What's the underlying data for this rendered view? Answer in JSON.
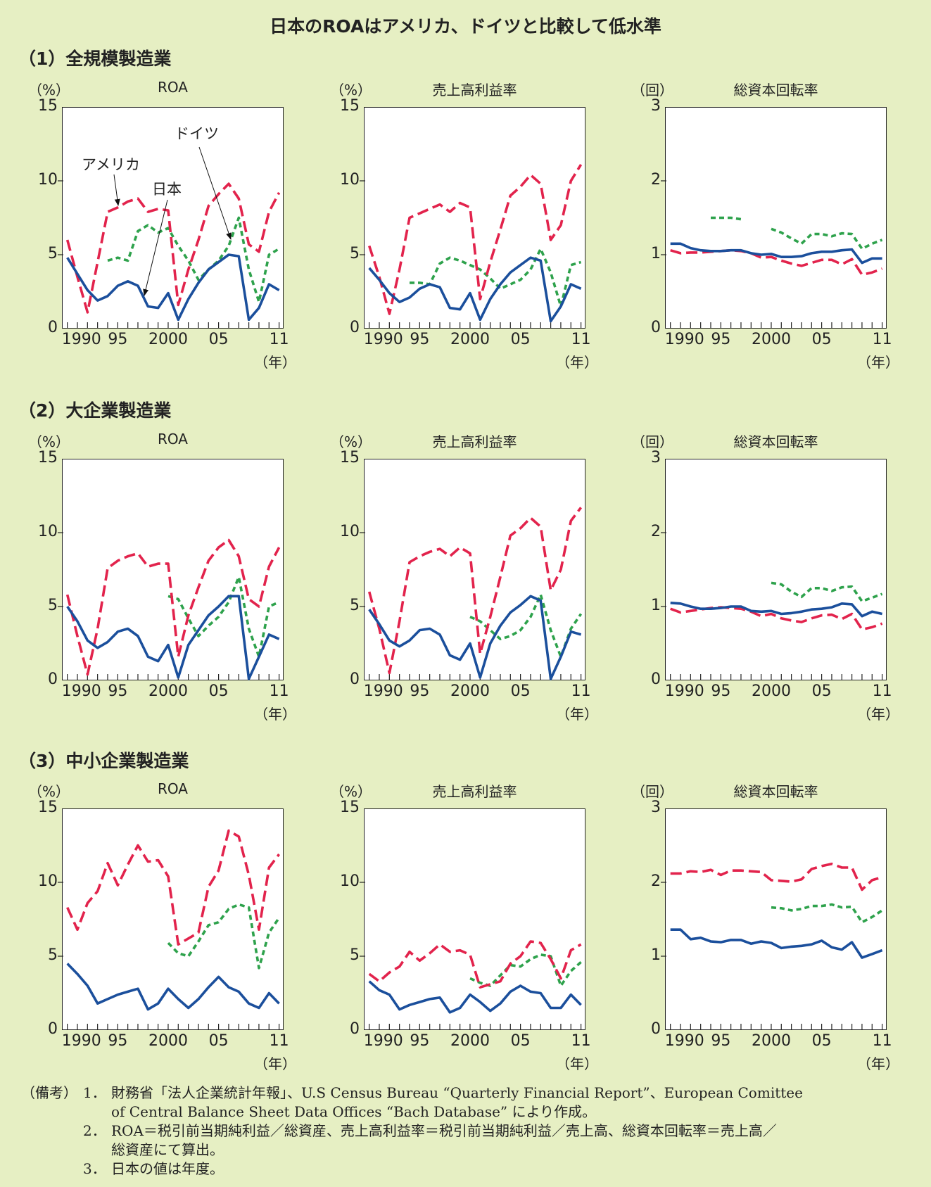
{
  "title": "日本のROAはアメリカ、ドイツと比較して低水準",
  "sections": [
    {
      "label": "（1）全規模製造業"
    },
    {
      "label": "（2）大企業製造業"
    },
    {
      "label": "（3）中小企業製造業"
    }
  ],
  "x_tick_labels": [
    "1990",
    "95",
    "2000",
    "05",
    "11"
  ],
  "x_unit": "（年）",
  "annotations": {
    "japan": "日本",
    "usa": "アメリカ",
    "germany": "ドイツ"
  },
  "colors": {
    "japan": "#1b4f9c",
    "usa": "#e2234c",
    "germany": "#2ea24c",
    "background": "#e6efc3"
  },
  "notes": {
    "label": "（備考）",
    "lines": [
      {
        "num": "1．",
        "text": "財務省「法人企業統計年報」、U.S Census Bureau “Quarterly Financial Report”、European Comittee"
      },
      {
        "num": "",
        "text": "of Central Balance Sheet Data Offices “Bach Database” により作成。"
      },
      {
        "num": "2．",
        "text": "ROA＝税引前当期純利益／総資産、売上高利益率＝税引前当期純利益／売上高、総資本回転率＝売上高／"
      },
      {
        "num": "",
        "text": "総資産にて算出。"
      },
      {
        "num": "3．",
        "text": "日本の値は年度。"
      }
    ]
  },
  "chart_data": [
    {
      "type": "line",
      "section": 0,
      "title": "ROA",
      "unit": "（%）",
      "ylim": [
        0,
        15
      ],
      "yticks": [
        0,
        5,
        10,
        15
      ],
      "x": [
        1990,
        1991,
        1992,
        1993,
        1994,
        1995,
        1996,
        1997,
        1998,
        1999,
        2000,
        2001,
        2002,
        2003,
        2004,
        2005,
        2006,
        2007,
        2008,
        2009,
        2010,
        2011
      ],
      "series": [
        {
          "name": "日本",
          "key": "japan",
          "values": [
            4.8,
            3.7,
            2.6,
            1.9,
            2.2,
            2.9,
            3.2,
            2.9,
            1.5,
            1.4,
            2.4,
            0.6,
            2.0,
            3.1,
            4.0,
            4.5,
            5.0,
            4.9,
            0.6,
            1.4,
            3.0,
            2.6
          ]
        },
        {
          "name": "アメリカ",
          "key": "usa",
          "values": [
            6.0,
            3.5,
            1.1,
            4.5,
            7.9,
            8.2,
            8.6,
            8.8,
            7.9,
            8.1,
            8.0,
            1.6,
            4.0,
            6.0,
            8.3,
            9.1,
            9.8,
            8.8,
            5.7,
            5.2,
            7.9,
            9.2
          ]
        },
        {
          "name": "ドイツ",
          "key": "germany",
          "values": [
            null,
            null,
            null,
            null,
            4.6,
            4.8,
            4.6,
            6.6,
            7.0,
            6.5,
            6.8,
            5.6,
            4.6,
            3.3,
            4.0,
            4.6,
            5.6,
            7.5,
            4.0,
            1.8,
            5.0,
            5.4
          ]
        }
      ]
    },
    {
      "type": "line",
      "section": 0,
      "title": "売上高利益率",
      "unit": "（%）",
      "ylim": [
        0,
        15
      ],
      "yticks": [
        0,
        5,
        10,
        15
      ],
      "x": [
        1990,
        1991,
        1992,
        1993,
        1994,
        1995,
        1996,
        1997,
        1998,
        1999,
        2000,
        2001,
        2002,
        2003,
        2004,
        2005,
        2006,
        2007,
        2008,
        2009,
        2010,
        2011
      ],
      "series": [
        {
          "name": "日本",
          "key": "japan",
          "values": [
            4.1,
            3.3,
            2.4,
            1.8,
            2.1,
            2.7,
            3.0,
            2.8,
            1.4,
            1.3,
            2.4,
            0.6,
            2.0,
            3.0,
            3.8,
            4.3,
            4.8,
            4.6,
            0.5,
            1.5,
            3.0,
            2.7
          ]
        },
        {
          "name": "アメリカ",
          "key": "usa",
          "values": [
            5.6,
            3.5,
            1.0,
            4.0,
            7.5,
            7.8,
            8.1,
            8.4,
            7.9,
            8.5,
            8.2,
            2.0,
            4.5,
            6.7,
            9.0,
            9.6,
            10.4,
            9.8,
            6.0,
            7.0,
            10.0,
            11.1
          ]
        },
        {
          "name": "ドイツ",
          "key": "germany",
          "values": [
            null,
            null,
            null,
            null,
            3.1,
            3.1,
            3.0,
            4.4,
            4.8,
            4.6,
            4.3,
            4.0,
            3.4,
            2.7,
            3.0,
            3.3,
            4.0,
            5.4,
            3.8,
            1.5,
            4.3,
            4.5
          ]
        }
      ]
    },
    {
      "type": "line",
      "section": 0,
      "title": "総資本回転率",
      "unit": "（回）",
      "ylim": [
        0,
        3
      ],
      "yticks": [
        0,
        1,
        2,
        3
      ],
      "x": [
        1990,
        1991,
        1992,
        1993,
        1994,
        1995,
        1996,
        1997,
        1998,
        1999,
        2000,
        2001,
        2002,
        2003,
        2004,
        2005,
        2006,
        2007,
        2008,
        2009,
        2010,
        2011
      ],
      "series": [
        {
          "name": "日本",
          "key": "japan",
          "values": [
            1.15,
            1.15,
            1.09,
            1.06,
            1.05,
            1.05,
            1.06,
            1.06,
            1.02,
            1.0,
            1.01,
            0.97,
            0.97,
            0.98,
            1.02,
            1.04,
            1.04,
            1.06,
            1.07,
            0.89,
            0.95,
            0.95
          ]
        },
        {
          "name": "アメリカ",
          "key": "usa",
          "values": [
            1.06,
            1.02,
            1.03,
            1.03,
            1.04,
            1.05,
            1.06,
            1.05,
            1.02,
            0.96,
            0.97,
            0.92,
            0.88,
            0.85,
            0.89,
            0.93,
            0.93,
            0.87,
            0.94,
            0.73,
            0.76,
            0.81
          ]
        },
        {
          "name": "ドイツ",
          "key": "germany",
          "values": [
            null,
            null,
            null,
            null,
            1.5,
            1.5,
            1.5,
            1.48,
            null,
            null,
            1.35,
            1.3,
            1.22,
            1.15,
            1.28,
            1.28,
            1.25,
            1.29,
            1.28,
            1.08,
            1.15,
            1.2
          ]
        }
      ]
    },
    {
      "type": "line",
      "section": 1,
      "title": "ROA",
      "unit": "（%）",
      "ylim": [
        0,
        15
      ],
      "yticks": [
        0,
        5,
        10,
        15
      ],
      "x": [
        1990,
        1991,
        1992,
        1993,
        1994,
        1995,
        1996,
        1997,
        1998,
        1999,
        2000,
        2001,
        2002,
        2003,
        2004,
        2005,
        2006,
        2007,
        2008,
        2009,
        2010,
        2011
      ],
      "series": [
        {
          "name": "日本",
          "key": "japan",
          "values": [
            5.0,
            4.0,
            2.7,
            2.2,
            2.6,
            3.3,
            3.5,
            3.0,
            1.6,
            1.3,
            2.4,
            0.2,
            2.4,
            3.4,
            4.4,
            5.0,
            5.7,
            5.7,
            0.1,
            1.6,
            3.1,
            2.8
          ]
        },
        {
          "name": "アメリカ",
          "key": "usa",
          "values": [
            5.8,
            3.0,
            0.4,
            3.5,
            7.6,
            8.1,
            8.4,
            8.6,
            7.7,
            7.9,
            7.9,
            1.6,
            4.4,
            6.3,
            8.1,
            9.0,
            9.5,
            8.4,
            5.5,
            5.0,
            7.7,
            9.0
          ]
        },
        {
          "name": "ドイツ",
          "key": "germany",
          "values": [
            null,
            null,
            null,
            null,
            null,
            null,
            null,
            null,
            null,
            null,
            5.7,
            5.5,
            4.2,
            3.0,
            3.7,
            4.3,
            5.3,
            7.0,
            3.5,
            1.6,
            5.0,
            5.3
          ]
        }
      ]
    },
    {
      "type": "line",
      "section": 1,
      "title": "売上高利益率",
      "unit": "（%）",
      "ylim": [
        0,
        15
      ],
      "yticks": [
        0,
        5,
        10,
        15
      ],
      "x": [
        1990,
        1991,
        1992,
        1993,
        1994,
        1995,
        1996,
        1997,
        1998,
        1999,
        2000,
        2001,
        2002,
        2003,
        2004,
        2005,
        2006,
        2007,
        2008,
        2009,
        2010,
        2011
      ],
      "series": [
        {
          "name": "日本",
          "key": "japan",
          "values": [
            4.8,
            3.8,
            2.7,
            2.3,
            2.7,
            3.4,
            3.5,
            3.1,
            1.7,
            1.4,
            2.5,
            0.2,
            2.5,
            3.7,
            4.6,
            5.1,
            5.7,
            5.4,
            0.1,
            1.6,
            3.3,
            3.1
          ]
        },
        {
          "name": "アメリカ",
          "key": "usa",
          "values": [
            6.0,
            3.5,
            0.5,
            4.0,
            8.0,
            8.4,
            8.7,
            8.9,
            8.4,
            9.0,
            8.6,
            1.8,
            4.3,
            7.0,
            9.8,
            10.3,
            11.0,
            10.4,
            6.1,
            7.5,
            10.8,
            11.7
          ]
        },
        {
          "name": "ドイツ",
          "key": "germany",
          "values": [
            null,
            null,
            null,
            null,
            null,
            null,
            null,
            null,
            null,
            null,
            4.3,
            4.0,
            3.4,
            2.8,
            3.0,
            3.4,
            4.3,
            5.8,
            3.4,
            1.6,
            3.5,
            4.5
          ]
        }
      ]
    },
    {
      "type": "line",
      "section": 1,
      "title": "総資本回転率",
      "unit": "（回）",
      "ylim": [
        0,
        3
      ],
      "yticks": [
        0,
        1,
        2,
        3
      ],
      "x": [
        1990,
        1991,
        1992,
        1993,
        1994,
        1995,
        1996,
        1997,
        1998,
        1999,
        2000,
        2001,
        2002,
        2003,
        2004,
        2005,
        2006,
        2007,
        2008,
        2009,
        2010,
        2011
      ],
      "series": [
        {
          "name": "日本",
          "key": "japan",
          "values": [
            1.05,
            1.04,
            1.0,
            0.97,
            0.97,
            0.98,
            1.0,
            1.0,
            0.94,
            0.93,
            0.94,
            0.9,
            0.91,
            0.93,
            0.96,
            0.97,
            0.99,
            1.04,
            1.03,
            0.87,
            0.93,
            0.9
          ]
        },
        {
          "name": "アメリカ",
          "key": "usa",
          "values": [
            0.97,
            0.92,
            0.94,
            0.96,
            0.98,
            0.99,
            0.98,
            0.97,
            0.93,
            0.87,
            0.9,
            0.84,
            0.81,
            0.79,
            0.84,
            0.88,
            0.89,
            0.83,
            0.9,
            0.69,
            0.72,
            0.77
          ]
        },
        {
          "name": "ドイツ",
          "key": "germany",
          "values": [
            null,
            null,
            null,
            null,
            null,
            null,
            null,
            null,
            null,
            null,
            1.32,
            1.3,
            1.2,
            1.13,
            1.25,
            1.25,
            1.21,
            1.26,
            1.27,
            1.07,
            1.12,
            1.17
          ]
        }
      ]
    },
    {
      "type": "line",
      "section": 2,
      "title": "ROA",
      "unit": "（%）",
      "ylim": [
        0,
        15
      ],
      "yticks": [
        0,
        5,
        10,
        15
      ],
      "x": [
        1990,
        1991,
        1992,
        1993,
        1994,
        1995,
        1996,
        1997,
        1998,
        1999,
        2000,
        2001,
        2002,
        2003,
        2004,
        2005,
        2006,
        2007,
        2008,
        2009,
        2010,
        2011
      ],
      "series": [
        {
          "name": "日本",
          "key": "japan",
          "values": [
            4.5,
            3.8,
            3.0,
            1.8,
            2.1,
            2.4,
            2.6,
            2.8,
            1.4,
            1.8,
            2.8,
            2.1,
            1.5,
            2.1,
            2.9,
            3.6,
            2.9,
            2.6,
            1.8,
            1.5,
            2.5,
            1.8
          ]
        },
        {
          "name": "アメリカ",
          "key": "usa",
          "values": [
            8.3,
            6.8,
            8.6,
            9.4,
            11.3,
            9.8,
            11.2,
            12.5,
            11.4,
            11.5,
            10.4,
            5.8,
            6.2,
            6.6,
            9.7,
            10.8,
            13.5,
            13.1,
            10.5,
            6.8,
            11.0,
            11.9
          ]
        },
        {
          "name": "ドイツ",
          "key": "germany",
          "values": [
            null,
            null,
            null,
            null,
            null,
            null,
            null,
            null,
            null,
            null,
            5.9,
            5.2,
            5.0,
            6.0,
            7.1,
            7.3,
            8.2,
            8.5,
            8.3,
            4.2,
            6.6,
            7.6
          ]
        }
      ]
    },
    {
      "type": "line",
      "section": 2,
      "title": "売上高利益率",
      "unit": "（%）",
      "ylim": [
        0,
        15
      ],
      "yticks": [
        0,
        5,
        10,
        15
      ],
      "x": [
        1990,
        1991,
        1992,
        1993,
        1994,
        1995,
        1996,
        1997,
        1998,
        1999,
        2000,
        2001,
        2002,
        2003,
        2004,
        2005,
        2006,
        2007,
        2008,
        2009,
        2010,
        2011
      ],
      "series": [
        {
          "name": "日本",
          "key": "japan",
          "values": [
            3.3,
            2.7,
            2.4,
            1.4,
            1.7,
            1.9,
            2.1,
            2.2,
            1.2,
            1.5,
            2.4,
            1.9,
            1.3,
            1.8,
            2.6,
            3.0,
            2.6,
            2.5,
            1.5,
            1.5,
            2.4,
            1.7
          ]
        },
        {
          "name": "アメリカ",
          "key": "usa",
          "values": [
            3.8,
            3.3,
            3.9,
            4.3,
            5.3,
            4.7,
            5.2,
            5.8,
            5.3,
            5.4,
            5.1,
            2.9,
            3.1,
            3.3,
            4.5,
            5.0,
            6.0,
            5.9,
            4.8,
            3.5,
            5.4,
            5.8
          ]
        },
        {
          "name": "ドイツ",
          "key": "germany",
          "values": [
            null,
            null,
            null,
            null,
            null,
            null,
            null,
            null,
            null,
            null,
            3.5,
            3.2,
            3.0,
            3.7,
            4.4,
            4.3,
            4.8,
            5.1,
            5.0,
            3.0,
            4.0,
            4.6
          ]
        }
      ]
    },
    {
      "type": "line",
      "section": 2,
      "title": "総資本回転率",
      "unit": "（回）",
      "ylim": [
        0,
        3
      ],
      "yticks": [
        0,
        1,
        2,
        3
      ],
      "x": [
        1990,
        1991,
        1992,
        1993,
        1994,
        1995,
        1996,
        1997,
        1998,
        1999,
        2000,
        2001,
        2002,
        2003,
        2004,
        2005,
        2006,
        2007,
        2008,
        2009,
        2010,
        2011
      ],
      "series": [
        {
          "name": "日本",
          "key": "japan",
          "values": [
            1.36,
            1.36,
            1.23,
            1.25,
            1.2,
            1.19,
            1.22,
            1.22,
            1.17,
            1.2,
            1.18,
            1.11,
            1.13,
            1.14,
            1.16,
            1.21,
            1.12,
            1.09,
            1.19,
            0.98,
            1.03,
            1.08
          ]
        },
        {
          "name": "アメリカ",
          "key": "usa",
          "values": [
            2.12,
            2.12,
            2.15,
            2.14,
            2.17,
            2.1,
            2.16,
            2.16,
            2.15,
            2.14,
            2.03,
            2.02,
            2.01,
            2.04,
            2.18,
            2.22,
            2.25,
            2.2,
            2.2,
            1.9,
            2.03,
            2.07
          ]
        },
        {
          "name": "ドイツ",
          "key": "germany",
          "values": [
            null,
            null,
            null,
            null,
            null,
            null,
            null,
            null,
            null,
            null,
            1.66,
            1.65,
            1.62,
            1.64,
            1.68,
            1.68,
            1.7,
            1.66,
            1.67,
            1.46,
            1.53,
            1.62
          ]
        }
      ]
    }
  ]
}
